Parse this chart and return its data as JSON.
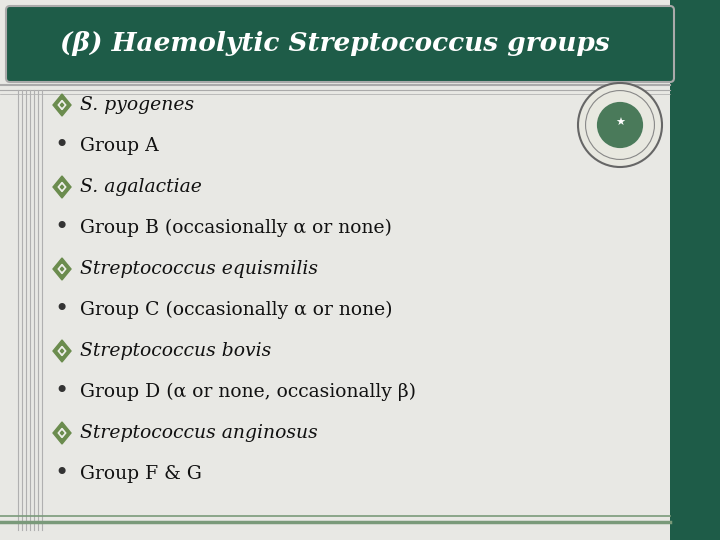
{
  "title": "(β) Haemolytic Streptococcus groups",
  "title_bg": "#1e5c48",
  "title_color": "#ffffff",
  "bg_color": "#e8e8e4",
  "content_bg": "#f0f0ec",
  "items": [
    {
      "type": "diamond",
      "text": "S. pyogenes",
      "italic": true
    },
    {
      "type": "bullet",
      "text": "Group A",
      "italic": false
    },
    {
      "type": "diamond",
      "text": "S. agalactiae",
      "italic": true
    },
    {
      "type": "bullet",
      "text": "Group B (occasionally α or none)",
      "italic": false
    },
    {
      "type": "diamond",
      "text": "Streptococcus equismilis",
      "italic": true
    },
    {
      "type": "bullet",
      "text": "Group C (occasionally α or none)",
      "italic": false
    },
    {
      "type": "diamond",
      "text": "Streptococcus bovis",
      "italic": true
    },
    {
      "type": "bullet",
      "text": "Group D (α or none, occasionally β)",
      "italic": false
    },
    {
      "type": "diamond",
      "text": "Streptococcus anginosus",
      "italic": true
    },
    {
      "type": "bullet",
      "text": "Group F & G",
      "italic": false
    }
  ],
  "diamond_color": "#6b8c4e",
  "bullet_color": "#333333",
  "text_color": "#111111",
  "font_size": 13.5,
  "title_font_size": 19,
  "separator_color": "#aaaaaa",
  "left_lines_color": "#b0b0b0",
  "bottom_lines_color": "#7a9a7a"
}
